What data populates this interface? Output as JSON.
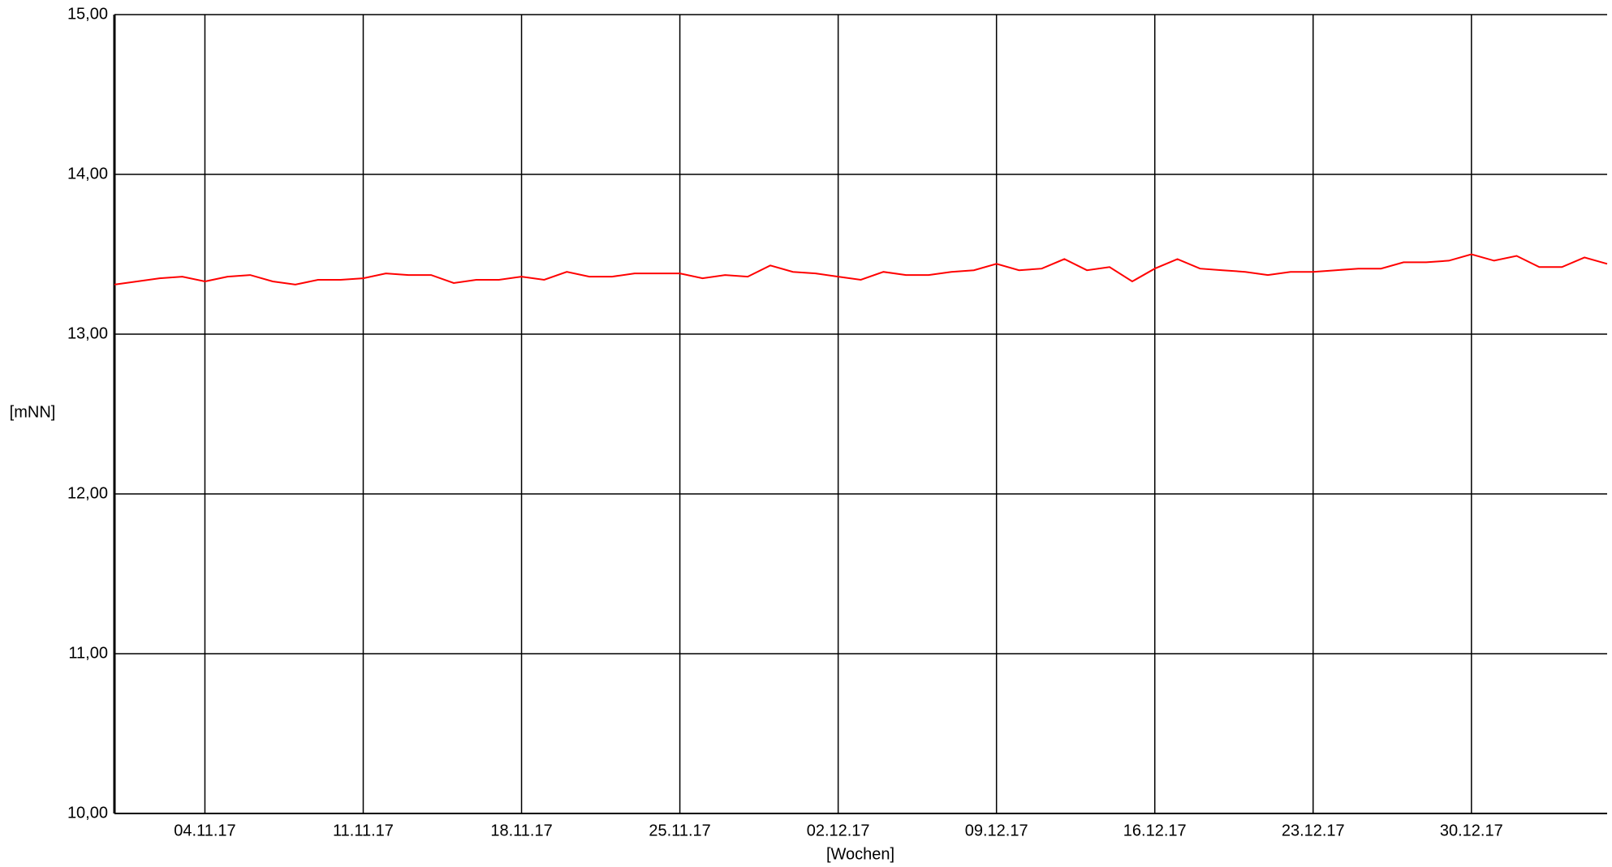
{
  "chart_data": {
    "type": "line",
    "x_label": "[Wochen]",
    "y_label": "[mNN]",
    "x": [
      "2017-10-31",
      "2017-11-01",
      "2017-11-02",
      "2017-11-03",
      "2017-11-04",
      "2017-11-05",
      "2017-11-06",
      "2017-11-07",
      "2017-11-08",
      "2017-11-09",
      "2017-11-10",
      "2017-11-11",
      "2017-11-12",
      "2017-11-13",
      "2017-11-14",
      "2017-11-15",
      "2017-11-16",
      "2017-11-17",
      "2017-11-18",
      "2017-11-19",
      "2017-11-20",
      "2017-11-21",
      "2017-11-22",
      "2017-11-23",
      "2017-11-24",
      "2017-11-25",
      "2017-11-26",
      "2017-11-27",
      "2017-11-28",
      "2017-11-29",
      "2017-11-30",
      "2017-12-01",
      "2017-12-02",
      "2017-12-03",
      "2017-12-04",
      "2017-12-05",
      "2017-12-06",
      "2017-12-07",
      "2017-12-08",
      "2017-12-09",
      "2017-12-10",
      "2017-12-11",
      "2017-12-12",
      "2017-12-13",
      "2017-12-14",
      "2017-12-15",
      "2017-12-16",
      "2017-12-17",
      "2017-12-18",
      "2017-12-19",
      "2017-12-20",
      "2017-12-21",
      "2017-12-22",
      "2017-12-23",
      "2017-12-24",
      "2017-12-25",
      "2017-12-26",
      "2017-12-27",
      "2017-12-28",
      "2017-12-29",
      "2017-12-30",
      "2017-12-31",
      "2018-01-01",
      "2018-01-02",
      "2018-01-03",
      "2018-01-04",
      "2018-01-05"
    ],
    "series": [
      {
        "color": "#ff0000",
        "values": [
          13.31,
          13.33,
          13.35,
          13.36,
          13.33,
          13.36,
          13.37,
          13.33,
          13.31,
          13.34,
          13.34,
          13.35,
          13.38,
          13.37,
          13.37,
          13.32,
          13.34,
          13.34,
          13.36,
          13.34,
          13.39,
          13.36,
          13.36,
          13.38,
          13.38,
          13.38,
          13.35,
          13.37,
          13.36,
          13.43,
          13.39,
          13.38,
          13.36,
          13.34,
          13.39,
          13.37,
          13.37,
          13.39,
          13.4,
          13.44,
          13.4,
          13.41,
          13.47,
          13.4,
          13.42,
          13.33,
          13.41,
          13.47,
          13.41,
          13.4,
          13.39,
          13.37,
          13.39,
          13.39,
          13.4,
          13.41,
          13.41,
          13.45,
          13.45,
          13.46,
          13.5,
          13.46,
          13.49,
          13.42,
          13.42,
          13.48,
          13.44
        ]
      }
    ],
    "xlim": [
      "2017-10-31",
      "2018-01-05"
    ],
    "xticks": [
      {
        "value": "2017-11-04",
        "label": "04.11.17"
      },
      {
        "value": "2017-11-11",
        "label": "11.11.17"
      },
      {
        "value": "2017-11-18",
        "label": "18.11.17"
      },
      {
        "value": "2017-11-25",
        "label": "25.11.17"
      },
      {
        "value": "2017-12-02",
        "label": "02.12.17"
      },
      {
        "value": "2017-12-09",
        "label": "09.12.17"
      },
      {
        "value": "2017-12-16",
        "label": "16.12.17"
      },
      {
        "value": "2017-12-23",
        "label": "23.12.17"
      },
      {
        "value": "2017-12-30",
        "label": "30.12.17"
      }
    ],
    "ylim": [
      10,
      15
    ],
    "yticks": [
      {
        "value": 10,
        "label": "10,00"
      },
      {
        "value": 11,
        "label": "11,00"
      },
      {
        "value": 12,
        "label": "12,00"
      },
      {
        "value": 13,
        "label": "13,00"
      },
      {
        "value": 14,
        "label": "14,00"
      },
      {
        "value": 15,
        "label": "15,00"
      }
    ],
    "grid": true
  }
}
